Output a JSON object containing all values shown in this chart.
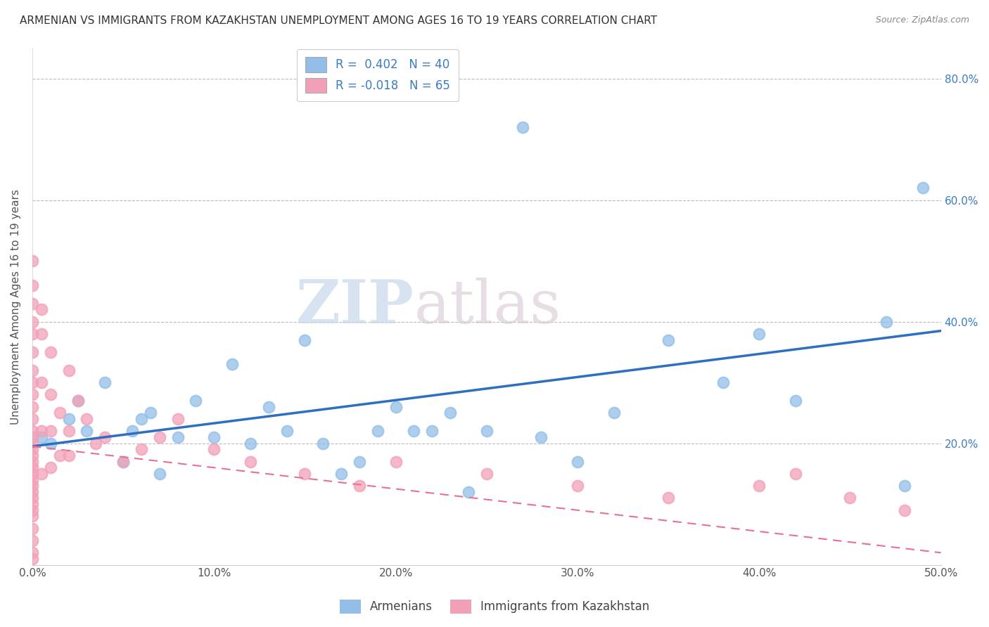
{
  "title": "ARMENIAN VS IMMIGRANTS FROM KAZAKHSTAN UNEMPLOYMENT AMONG AGES 16 TO 19 YEARS CORRELATION CHART",
  "source": "Source: ZipAtlas.com",
  "ylabel": "Unemployment Among Ages 16 to 19 years",
  "xlim": [
    0.0,
    0.5
  ],
  "ylim": [
    0.0,
    0.85
  ],
  "xticks": [
    0.0,
    0.1,
    0.2,
    0.3,
    0.4,
    0.5
  ],
  "yticks": [
    0.2,
    0.4,
    0.6,
    0.8
  ],
  "ytick_labels_right": [
    "20.0%",
    "40.0%",
    "60.0%",
    "80.0%"
  ],
  "xtick_labels": [
    "0.0%",
    "10.0%",
    "20.0%",
    "30.0%",
    "40.0%",
    "50.0%"
  ],
  "legend_label1": "Armenians",
  "legend_label2": "Immigrants from Kazakhstan",
  "blue_color": "#92BEE8",
  "pink_color": "#F2A0B8",
  "blue_line_color": "#2E6FBF",
  "pink_line_color": "#E87090",
  "watermark_zip": "ZIP",
  "watermark_atlas": "atlas",
  "blue_line_x0": 0.0,
  "blue_line_y0": 0.195,
  "blue_line_x1": 0.5,
  "blue_line_y1": 0.385,
  "pink_line_x0": 0.0,
  "pink_line_y0": 0.195,
  "pink_line_x1": 0.5,
  "pink_line_y1": 0.02,
  "arm_x": [
    0.005,
    0.01,
    0.02,
    0.025,
    0.03,
    0.04,
    0.05,
    0.055,
    0.06,
    0.065,
    0.07,
    0.08,
    0.09,
    0.1,
    0.11,
    0.12,
    0.13,
    0.14,
    0.15,
    0.16,
    0.17,
    0.18,
    0.19,
    0.2,
    0.21,
    0.22,
    0.23,
    0.24,
    0.25,
    0.28,
    0.3,
    0.32,
    0.35,
    0.38,
    0.4,
    0.42,
    0.27,
    0.47,
    0.48,
    0.49
  ],
  "arm_y": [
    0.21,
    0.2,
    0.24,
    0.27,
    0.22,
    0.3,
    0.17,
    0.22,
    0.24,
    0.25,
    0.15,
    0.21,
    0.27,
    0.21,
    0.33,
    0.2,
    0.26,
    0.22,
    0.37,
    0.2,
    0.15,
    0.17,
    0.22,
    0.26,
    0.22,
    0.22,
    0.25,
    0.12,
    0.22,
    0.21,
    0.17,
    0.25,
    0.37,
    0.3,
    0.38,
    0.27,
    0.72,
    0.4,
    0.13,
    0.62
  ],
  "kaz_x": [
    0.0,
    0.0,
    0.0,
    0.0,
    0.0,
    0.0,
    0.0,
    0.0,
    0.0,
    0.0,
    0.0,
    0.0,
    0.0,
    0.0,
    0.0,
    0.0,
    0.0,
    0.0,
    0.0,
    0.0,
    0.0,
    0.0,
    0.0,
    0.0,
    0.0,
    0.0,
    0.0,
    0.0,
    0.0,
    0.0,
    0.005,
    0.005,
    0.005,
    0.005,
    0.01,
    0.01,
    0.01,
    0.015,
    0.015,
    0.02,
    0.02,
    0.025,
    0.03,
    0.035,
    0.04,
    0.05,
    0.06,
    0.07,
    0.08,
    0.1,
    0.12,
    0.15,
    0.18,
    0.2,
    0.25,
    0.3,
    0.35,
    0.4,
    0.42,
    0.45,
    0.48,
    0.005,
    0.01,
    0.02
  ],
  "kaz_y": [
    0.5,
    0.46,
    0.43,
    0.4,
    0.38,
    0.35,
    0.32,
    0.3,
    0.28,
    0.26,
    0.24,
    0.22,
    0.21,
    0.2,
    0.19,
    0.18,
    0.17,
    0.16,
    0.15,
    0.14,
    0.13,
    0.12,
    0.11,
    0.1,
    0.09,
    0.08,
    0.06,
    0.04,
    0.02,
    0.01,
    0.38,
    0.3,
    0.22,
    0.15,
    0.35,
    0.28,
    0.16,
    0.25,
    0.18,
    0.32,
    0.22,
    0.27,
    0.24,
    0.2,
    0.21,
    0.17,
    0.19,
    0.21,
    0.24,
    0.19,
    0.17,
    0.15,
    0.13,
    0.17,
    0.15,
    0.13,
    0.11,
    0.13,
    0.15,
    0.11,
    0.09,
    0.42,
    0.22,
    0.18
  ]
}
